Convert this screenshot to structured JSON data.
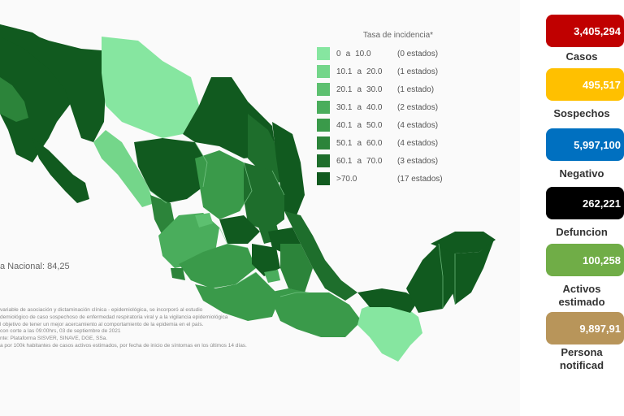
{
  "legend": {
    "title": "Tasa de incidencia*",
    "items": [
      {
        "low": "0",
        "high": "10.0",
        "count": "(0 estados)",
        "color": "#86e6a0"
      },
      {
        "low": "10.1",
        "high": "20.0",
        "count": "(1 estados)",
        "color": "#74d68a"
      },
      {
        "low": "20.1",
        "high": "30.0",
        "count": "(1 estado)",
        "color": "#5dc070"
      },
      {
        "low": "30.1",
        "high": "40.0",
        "count": "(2 estados)",
        "color": "#4aad5c"
      },
      {
        "low": "40.1",
        "high": "50.0",
        "count": "(4 estados)",
        "color": "#3a9a4a"
      },
      {
        "low": "50.1",
        "high": "60.0",
        "count": "(4 estados)",
        "color": "#2c843a"
      },
      {
        "low": "60.1",
        "high": "70.0",
        "count": "(3 estados)",
        "color": "#1e6e2c"
      },
      {
        "low": ">70.0",
        "high": "",
        "count": "(17 estados)",
        "color": "#115a1f"
      }
    ],
    "separator": "a"
  },
  "tasa_nacional": "a Nacional: 84,25",
  "notes": [
    "variable de asociación y dictaminación clínica - epidemiológica, se incorporó al estudio",
    "demiológico de caso sospechoso de enfermedad respiratoria viral y a la vigilancia epidemiológica",
    "l objetivo de tener un mejor acercamiento al comportamiento de la epidemia en el país.",
    "con corte a las 09:00hrs, 03 de septiembre de 2021",
    "nte: Plataforma SISVER, SINAVE, DGE, SSa.",
    "a por 100k habitantes de casos activos estimados, por fecha de inicio de síntomas en los últimos 14 días."
  ],
  "stats": [
    {
      "value": "3,405,294",
      "label": "Casos",
      "color": "#c00000"
    },
    {
      "value": "495,517",
      "label": "Sospechos",
      "color": "#ffc000"
    },
    {
      "value": "5,997,100",
      "label": "Negativo",
      "color": "#0070c0"
    },
    {
      "value": "262,221",
      "label": "Defuncion",
      "color": "#000000"
    },
    {
      "value": "100,258",
      "label": "Activos\nestimado",
      "color": "#70ad47"
    },
    {
      "value": "9,897,91",
      "label": "Persona\nnotificad",
      "color": "#b8955a"
    }
  ]
}
